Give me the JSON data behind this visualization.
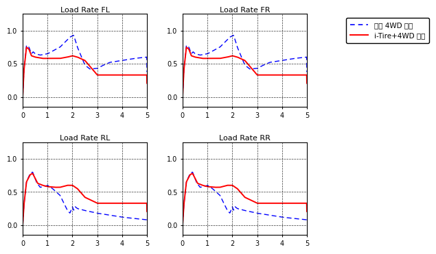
{
  "title_FL": "Load Rate FL",
  "title_FR": "Load Rate FR",
  "title_RL": "Load Rate RL",
  "title_RR": "Load Rate RR",
  "legend_blue": "기존 4WD 로직",
  "legend_red": "i-Tire+4WD 로직",
  "xlim": [
    0,
    5
  ],
  "ylim": [
    -0.15,
    1.25
  ],
  "yticks": [
    0,
    0.5,
    1
  ],
  "xticks": [
    0,
    1,
    2,
    3,
    4,
    5
  ],
  "blue_color": "#0000FF",
  "red_color": "#FF0000",
  "background": "#FFFFFF"
}
